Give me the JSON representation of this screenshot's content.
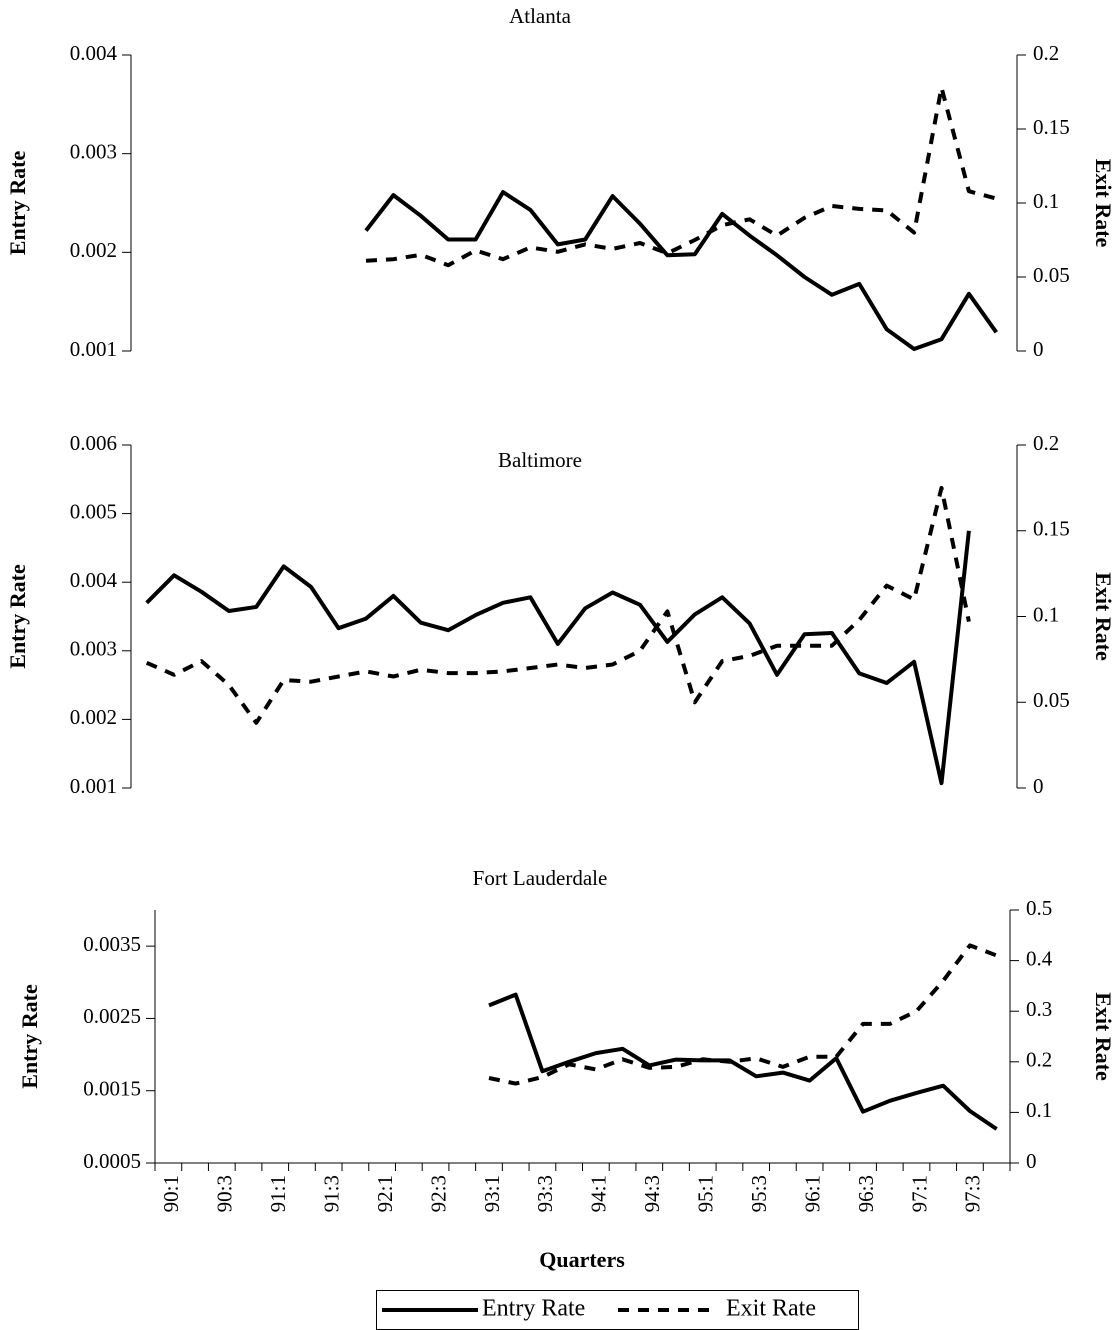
{
  "chart_data": [
    {
      "type": "line",
      "title": "Atlanta",
      "y_label": "Entry Rate",
      "y2_label": "Exit Rate",
      "ylim": [
        0.001,
        0.004
      ],
      "yticks": [
        0.001,
        0.002,
        0.003,
        0.004
      ],
      "y2lim": [
        0,
        0.2
      ],
      "y2ticks": [
        0,
        0.05,
        0.1,
        0.15,
        0.2
      ],
      "series": [
        {
          "color": "#000000",
          "line_style": "solid",
          "values": [
            null,
            null,
            null,
            null,
            null,
            null,
            null,
            null,
            0.00222,
            0.00258,
            0.00237,
            0.00213,
            0.00213,
            0.00261,
            0.00243,
            0.00208,
            0.00213,
            0.00257,
            0.00229,
            0.00197,
            0.00198,
            0.00239,
            0.00217,
            0.00197,
            0.00175,
            0.00157,
            0.00168,
            0.00122,
            0.00102,
            0.00112,
            0.00158,
            0.00119
          ]
        },
        {
          "color": "#000000",
          "line_style": "dashed",
          "axis": "y2",
          "values": [
            null,
            null,
            null,
            null,
            null,
            null,
            null,
            null,
            0.061,
            0.062,
            0.065,
            0.058,
            0.068,
            0.062,
            0.07,
            0.067,
            0.072,
            0.069,
            0.073,
            0.066,
            0.075,
            0.085,
            0.089,
            0.078,
            0.09,
            0.098,
            0.096,
            0.095,
            0.08,
            0.178,
            0.108,
            0.103
          ]
        }
      ]
    },
    {
      "type": "line",
      "title": "Baltimore",
      "y_label": "Entry Rate",
      "y2_label": "Exit Rate",
      "ylim": [
        0.001,
        0.006
      ],
      "yticks": [
        0.001,
        0.002,
        0.003,
        0.004,
        0.005,
        0.006
      ],
      "y2lim": [
        0,
        0.2
      ],
      "y2ticks": [
        0,
        0.05,
        0.1,
        0.15,
        0.2
      ],
      "series": [
        {
          "color": "#000000",
          "line_style": "solid",
          "values": [
            0.0037,
            0.0041,
            0.00386,
            0.00358,
            0.00364,
            0.00423,
            0.00393,
            0.00333,
            0.00347,
            0.0038,
            0.00341,
            0.0033,
            0.00352,
            0.0037,
            0.00378,
            0.0031,
            0.00362,
            0.00385,
            0.00367,
            0.00313,
            0.00353,
            0.00378,
            0.0034,
            0.00265,
            0.00324,
            0.00326,
            0.00267,
            0.00253,
            0.00284,
            0.00107,
            0.00475,
            null
          ]
        },
        {
          "color": "#000000",
          "line_style": "dashed",
          "axis": "y2",
          "values": [
            0.073,
            0.066,
            0.074,
            0.06,
            0.038,
            0.063,
            0.062,
            0.065,
            0.068,
            0.065,
            0.069,
            0.067,
            0.067,
            0.068,
            0.07,
            0.072,
            0.07,
            0.072,
            0.08,
            0.103,
            0.05,
            0.074,
            0.077,
            0.083,
            0.083,
            0.083,
            0.098,
            0.118,
            0.11,
            0.175,
            0.097,
            null
          ]
        }
      ]
    },
    {
      "type": "line",
      "title": "Fort Lauderdale",
      "x_label": "Quarters",
      "y_label": "Entry Rate",
      "y2_label": "Exit Rate",
      "categories": [
        "90:1",
        null,
        "90:3",
        null,
        "91:1",
        null,
        "91:3",
        null,
        "92:1",
        null,
        "92:3",
        null,
        "93:1",
        null,
        "93:3",
        null,
        "94:1",
        null,
        "94:3",
        null,
        "95:1",
        null,
        "95:3",
        null,
        "96:1",
        null,
        "96:3",
        null,
        "97:1",
        null,
        "97:3",
        null
      ],
      "ylim": [
        0.0005,
        0.004
      ],
      "yticks": [
        0.0005,
        0.0015,
        0.0025,
        0.0035
      ],
      "y2lim": [
        0,
        0.5
      ],
      "y2ticks": [
        0,
        0.1,
        0.2,
        0.3,
        0.4,
        0.5
      ],
      "series": [
        {
          "name": "Entry Rate",
          "color": "#000000",
          "line_style": "solid",
          "values": [
            null,
            null,
            null,
            null,
            null,
            null,
            null,
            null,
            null,
            null,
            null,
            null,
            0.00268,
            0.00283,
            0.00177,
            0.0019,
            0.00202,
            0.00208,
            0.00185,
            0.00193,
            0.00192,
            0.00192,
            0.0017,
            0.00175,
            0.00164,
            0.00195,
            0.00121,
            0.00136,
            0.00147,
            0.00157,
            0.00122,
            0.00097
          ]
        },
        {
          "name": "Exit Rate",
          "color": "#000000",
          "line_style": "dashed",
          "axis": "y2",
          "values": [
            null,
            null,
            null,
            null,
            null,
            null,
            null,
            null,
            null,
            null,
            null,
            null,
            0.168,
            0.157,
            0.17,
            0.195,
            0.185,
            0.205,
            0.188,
            0.19,
            0.205,
            0.2,
            0.207,
            0.19,
            0.21,
            0.21,
            0.275,
            0.275,
            0.3,
            0.36,
            0.43,
            0.41
          ]
        }
      ]
    }
  ]
}
